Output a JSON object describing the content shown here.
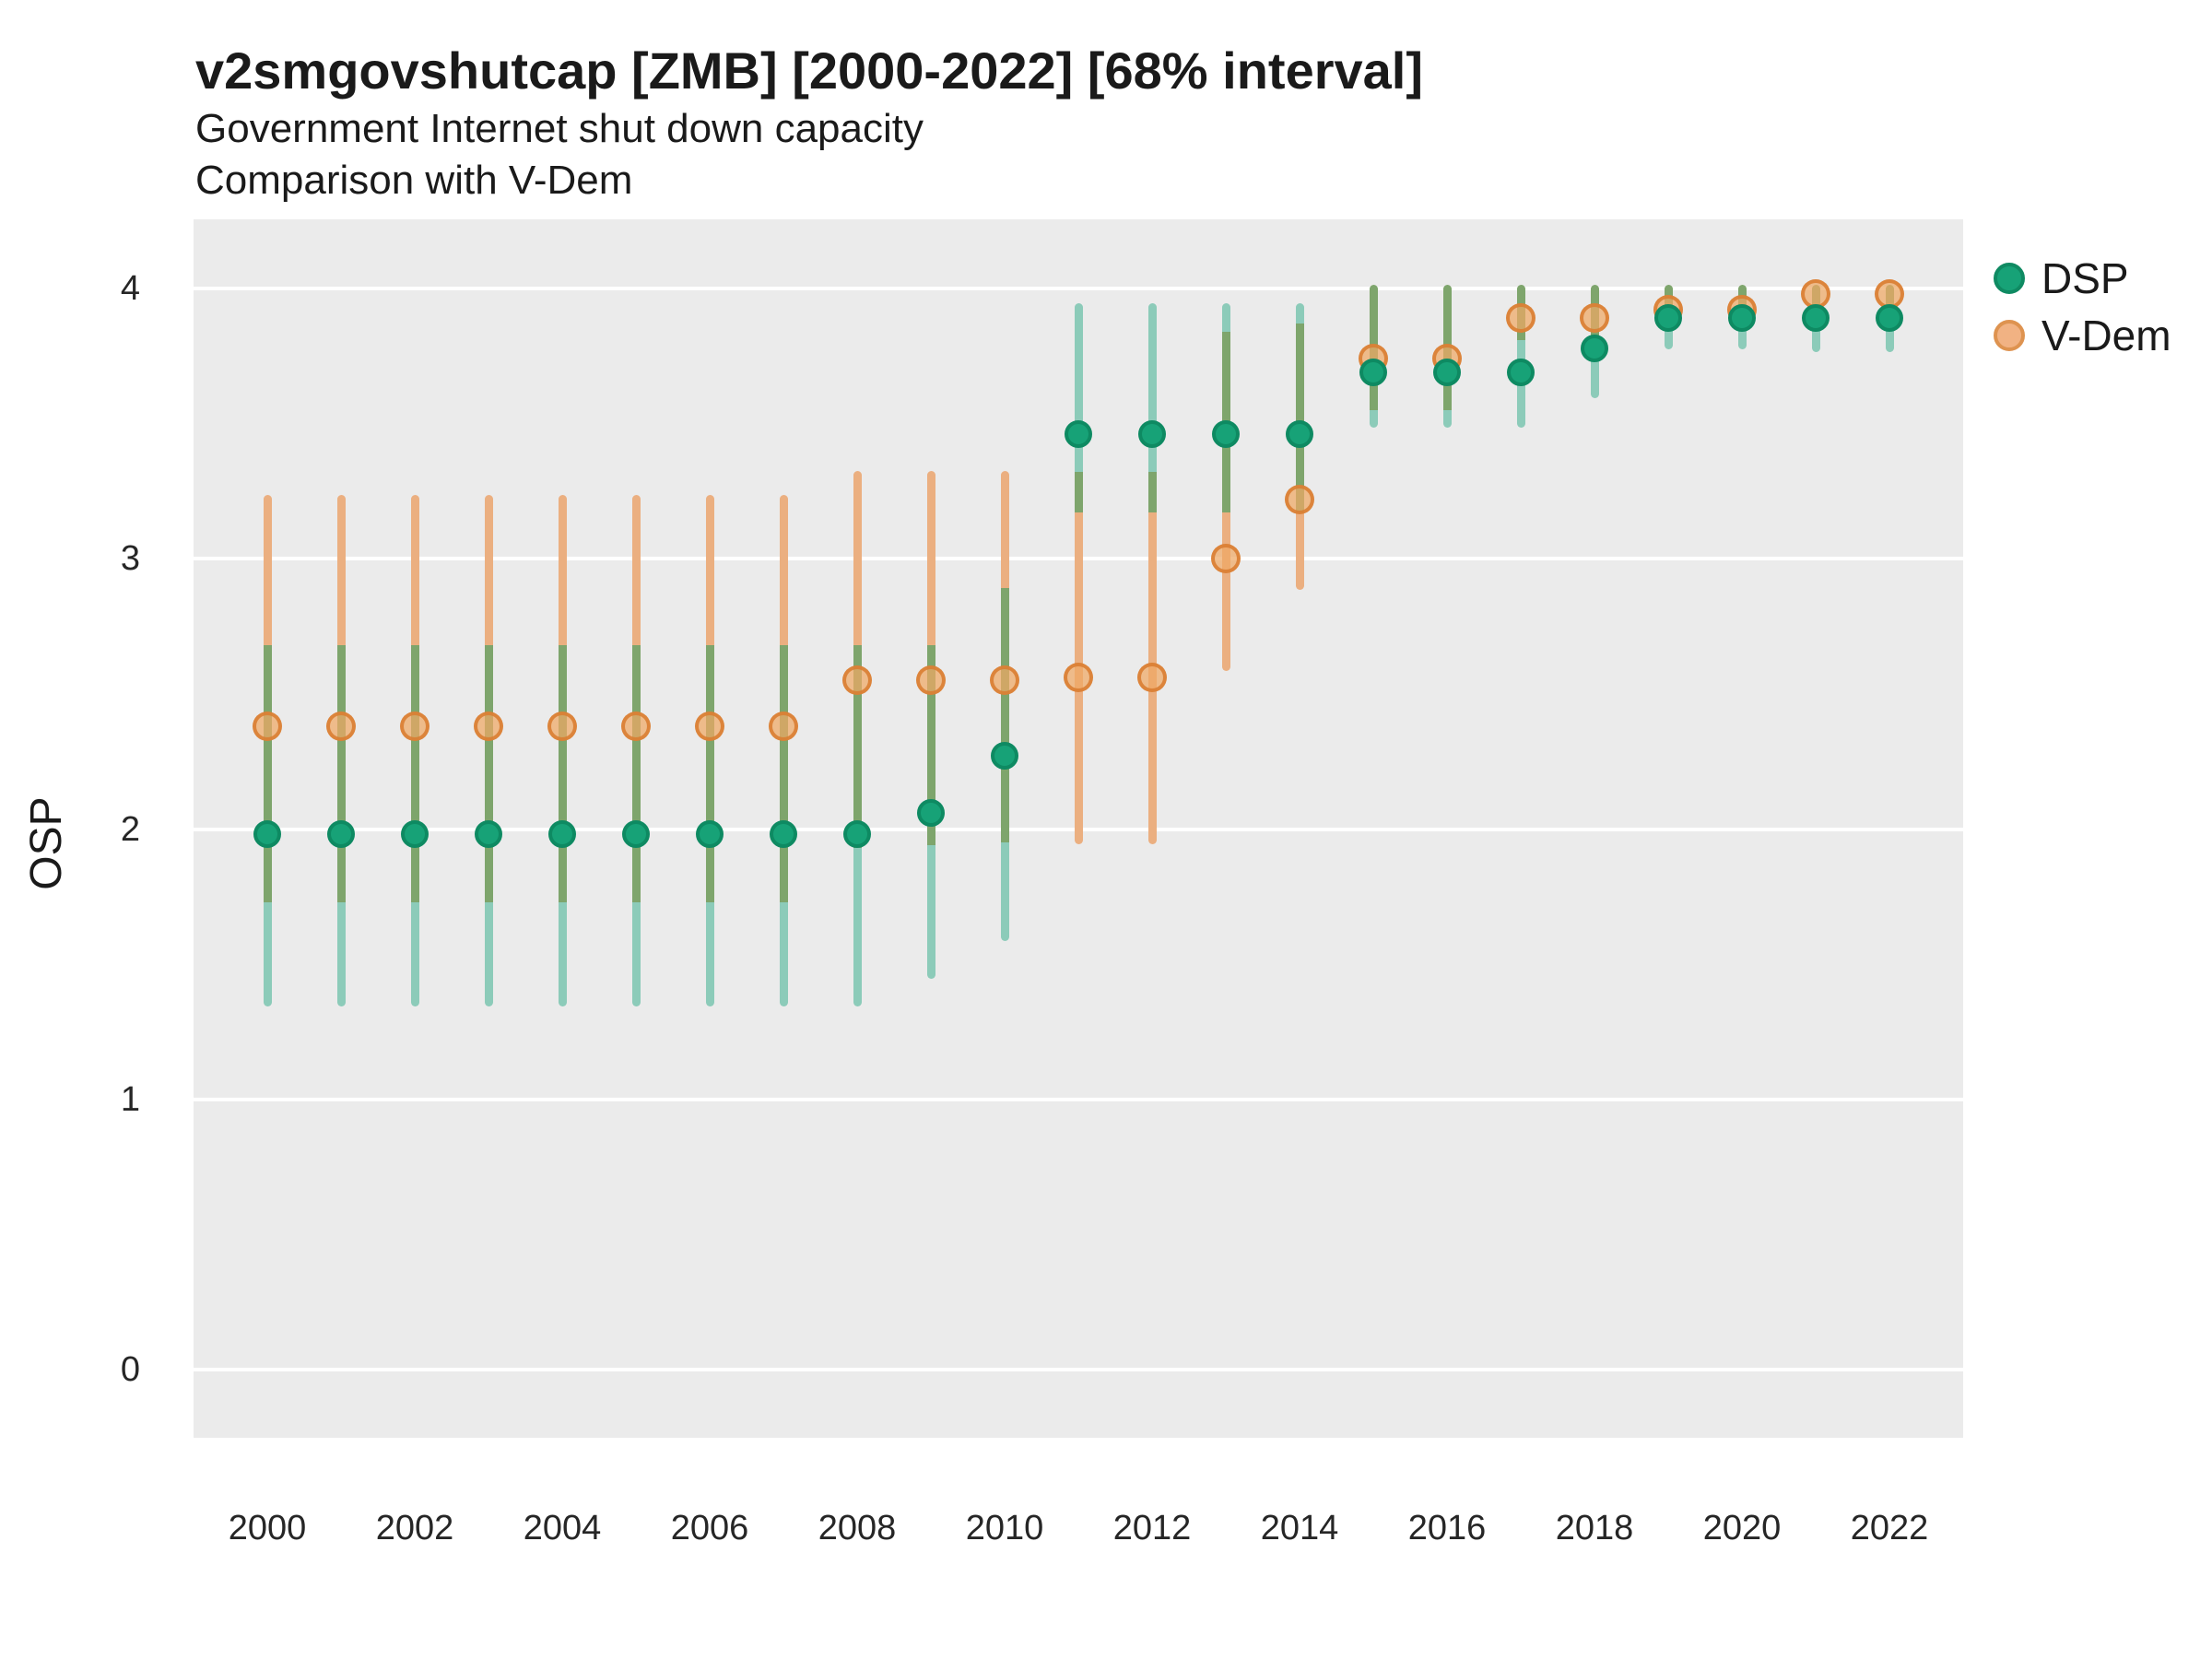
{
  "title": "v2smgovshutcap [ZMB] [2000-2022] [68% interval]",
  "subtitle_line1": "Government Internet shut down capacity",
  "subtitle_line2": "Comparison with V-Dem",
  "y_axis": {
    "label": "OSP",
    "ticks": [
      "4",
      "3",
      "2",
      "1",
      "0"
    ]
  },
  "x_axis": {
    "ticks": [
      "2000",
      "2002",
      "2004",
      "2006",
      "2008",
      "2010",
      "2012",
      "2014",
      "2016",
      "2018",
      "2020",
      "2022"
    ]
  },
  "legend": {
    "items": [
      {
        "label": "DSP"
      },
      {
        "label": "V-Dem"
      }
    ]
  },
  "colors": {
    "panel_bg": "#EBEBEB",
    "gridline": "#FFFFFF",
    "bar_dsp": "#8CCBB9",
    "bar_vdem": "#EBAF80",
    "bar_overlap": "#7EA56C",
    "point_dsp_fill": "#17A277",
    "point_dsp_stroke": "#0E8A62",
    "point_vdem_fill": "#F1B283",
    "point_vdem_stroke": "#DE9350"
  },
  "chart_data": {
    "type": "scatter",
    "title": "v2smgovshutcap [ZMB] [2000-2022] [68% interval]",
    "subtitle": "Government Internet shut down capacity — Comparison with V-Dem",
    "xlabel": "",
    "ylabel": "OSP",
    "ylim": [
      0,
      4
    ],
    "interval": "68%",
    "grid": true,
    "legend_position": "right",
    "years": [
      2000,
      2001,
      2002,
      2003,
      2004,
      2005,
      2006,
      2007,
      2008,
      2009,
      2010,
      2011,
      2012,
      2013,
      2014,
      2015,
      2016,
      2017,
      2018,
      2019,
      2020,
      2021,
      2022
    ],
    "series": [
      {
        "name": "DSP",
        "color": "#17A277",
        "points": [
          1.98,
          1.98,
          1.98,
          1.98,
          1.98,
          1.98,
          1.98,
          1.98,
          1.98,
          2.06,
          2.27,
          3.46,
          3.46,
          3.46,
          3.46,
          3.69,
          3.69,
          3.69,
          3.78,
          3.89,
          3.89,
          3.89,
          3.89
        ],
        "lower": [
          1.36,
          1.36,
          1.36,
          1.36,
          1.36,
          1.36,
          1.36,
          1.36,
          1.36,
          1.46,
          1.6,
          3.17,
          3.17,
          3.17,
          3.17,
          3.5,
          3.5,
          3.5,
          3.61,
          3.79,
          3.79,
          3.78,
          3.78
        ],
        "upper": [
          2.68,
          2.68,
          2.68,
          2.68,
          2.68,
          2.68,
          2.68,
          2.68,
          2.68,
          2.68,
          2.89,
          3.93,
          3.93,
          3.93,
          3.93,
          4.0,
          4.0,
          4.0,
          4.0,
          4.0,
          4.0,
          4.0,
          4.0
        ]
      },
      {
        "name": "V-Dem",
        "color": "#DE9350",
        "points": [
          2.38,
          2.38,
          2.38,
          2.38,
          2.38,
          2.38,
          2.38,
          2.38,
          2.55,
          2.55,
          2.55,
          2.56,
          2.56,
          3.0,
          3.22,
          3.74,
          3.74,
          3.89,
          3.89,
          3.92,
          3.92,
          3.98,
          3.98
        ],
        "lower": [
          1.73,
          1.73,
          1.73,
          1.73,
          1.73,
          1.73,
          1.73,
          1.73,
          1.93,
          1.94,
          1.95,
          1.96,
          1.96,
          2.6,
          2.9,
          3.55,
          3.55,
          3.81,
          3.81,
          3.85,
          3.85,
          3.9,
          3.9
        ],
        "upper": [
          3.22,
          3.22,
          3.22,
          3.22,
          3.22,
          3.22,
          3.22,
          3.22,
          3.31,
          3.31,
          3.31,
          3.32,
          3.32,
          3.84,
          3.87,
          4.0,
          4.0,
          4.0,
          4.0,
          4.0,
          4.0,
          4.0,
          4.0
        ]
      }
    ]
  }
}
